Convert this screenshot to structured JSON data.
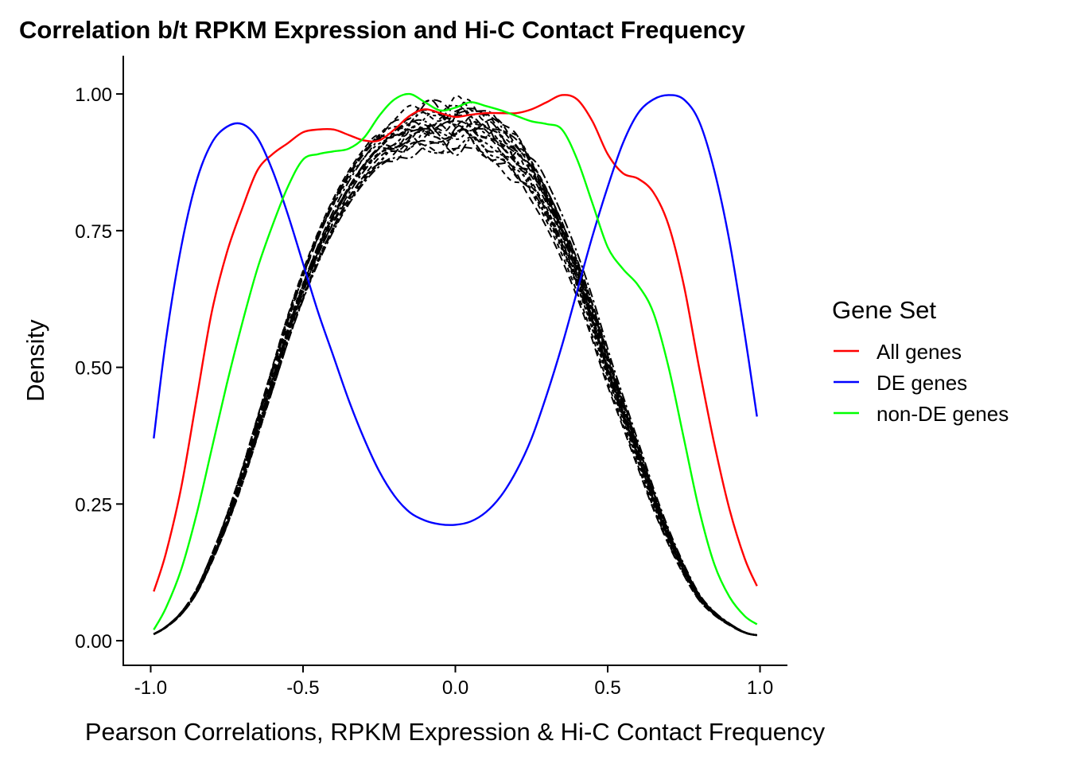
{
  "chart_data": {
    "type": "line",
    "title": "Correlation b/t RPKM Expression and Hi-C Contact Frequency",
    "xlabel": "Pearson Correlations, RPKM Expression & Hi-C Contact Frequency",
    "ylabel": "Density",
    "xlim": [
      -1.09,
      1.09
    ],
    "ylim": [
      -0.045,
      1.07
    ],
    "x_ticks": [
      -1.0,
      -0.5,
      0.0,
      0.5,
      1.0
    ],
    "x_tick_labels": [
      "-1.0",
      "-0.5",
      "0.0",
      "0.5",
      "1.0"
    ],
    "y_ticks": [
      0.0,
      0.25,
      0.5,
      0.75,
      1.0
    ],
    "y_tick_labels": [
      "0.00",
      "0.25",
      "0.50",
      "0.75",
      "1.00"
    ],
    "grid": false,
    "legend": {
      "title": "Gene Set",
      "position": "right",
      "entries": [
        {
          "label": "All genes",
          "color": "#ff0000"
        },
        {
          "label": "DE genes",
          "color": "#0000ff"
        },
        {
          "label": "non-DE genes",
          "color": "#00ff00"
        }
      ]
    },
    "series": [
      {
        "name": "All genes",
        "color": "#ff0000",
        "x": [
          -0.99,
          -0.95,
          -0.9,
          -0.85,
          -0.8,
          -0.75,
          -0.7,
          -0.65,
          -0.6,
          -0.55,
          -0.5,
          -0.45,
          -0.4,
          -0.35,
          -0.3,
          -0.25,
          -0.2,
          -0.15,
          -0.1,
          -0.05,
          0.0,
          0.05,
          0.1,
          0.15,
          0.2,
          0.25,
          0.3,
          0.35,
          0.4,
          0.45,
          0.5,
          0.55,
          0.6,
          0.65,
          0.7,
          0.75,
          0.8,
          0.85,
          0.9,
          0.95,
          0.99
        ],
        "y": [
          0.09,
          0.16,
          0.28,
          0.44,
          0.6,
          0.71,
          0.79,
          0.86,
          0.89,
          0.91,
          0.93,
          0.935,
          0.935,
          0.925,
          0.915,
          0.915,
          0.935,
          0.96,
          0.972,
          0.965,
          0.958,
          0.962,
          0.965,
          0.965,
          0.965,
          0.972,
          0.985,
          0.998,
          0.99,
          0.95,
          0.89,
          0.855,
          0.845,
          0.82,
          0.76,
          0.65,
          0.5,
          0.36,
          0.24,
          0.15,
          0.1
        ]
      },
      {
        "name": "DE genes",
        "color": "#0000ff",
        "x": [
          -0.99,
          -0.95,
          -0.9,
          -0.85,
          -0.8,
          -0.75,
          -0.7,
          -0.65,
          -0.6,
          -0.55,
          -0.5,
          -0.45,
          -0.4,
          -0.35,
          -0.3,
          -0.25,
          -0.2,
          -0.15,
          -0.1,
          -0.05,
          0.0,
          0.05,
          0.1,
          0.15,
          0.2,
          0.25,
          0.3,
          0.35,
          0.4,
          0.45,
          0.5,
          0.55,
          0.6,
          0.65,
          0.7,
          0.75,
          0.8,
          0.85,
          0.9,
          0.95,
          0.99
        ],
        "y": [
          0.37,
          0.55,
          0.72,
          0.84,
          0.91,
          0.94,
          0.945,
          0.92,
          0.86,
          0.78,
          0.69,
          0.6,
          0.52,
          0.44,
          0.37,
          0.31,
          0.265,
          0.235,
          0.22,
          0.213,
          0.212,
          0.218,
          0.235,
          0.265,
          0.31,
          0.37,
          0.45,
          0.54,
          0.64,
          0.74,
          0.83,
          0.91,
          0.965,
          0.99,
          0.998,
          0.99,
          0.95,
          0.86,
          0.73,
          0.56,
          0.41
        ]
      },
      {
        "name": "non-DE genes",
        "color": "#00ff00",
        "x": [
          -0.99,
          -0.95,
          -0.9,
          -0.85,
          -0.8,
          -0.75,
          -0.7,
          -0.65,
          -0.6,
          -0.55,
          -0.5,
          -0.45,
          -0.4,
          -0.35,
          -0.3,
          -0.25,
          -0.2,
          -0.15,
          -0.1,
          -0.05,
          0.0,
          0.05,
          0.1,
          0.15,
          0.2,
          0.25,
          0.3,
          0.35,
          0.4,
          0.45,
          0.5,
          0.55,
          0.6,
          0.65,
          0.7,
          0.75,
          0.8,
          0.85,
          0.9,
          0.95,
          0.99
        ],
        "y": [
          0.02,
          0.06,
          0.13,
          0.23,
          0.35,
          0.47,
          0.58,
          0.68,
          0.76,
          0.83,
          0.88,
          0.89,
          0.895,
          0.9,
          0.92,
          0.96,
          0.99,
          1.0,
          0.985,
          0.97,
          0.975,
          0.985,
          0.978,
          0.97,
          0.96,
          0.95,
          0.945,
          0.935,
          0.88,
          0.8,
          0.72,
          0.68,
          0.65,
          0.6,
          0.5,
          0.37,
          0.24,
          0.14,
          0.08,
          0.045,
          0.03
        ]
      }
    ],
    "null_series": {
      "color": "#000000",
      "style": "dashed",
      "count": 20,
      "x": [
        -0.99,
        -0.95,
        -0.9,
        -0.85,
        -0.8,
        -0.75,
        -0.7,
        -0.65,
        -0.6,
        -0.55,
        -0.5,
        -0.45,
        -0.4,
        -0.35,
        -0.3,
        -0.25,
        -0.2,
        -0.15,
        -0.1,
        -0.05,
        0.0,
        0.05,
        0.1,
        0.15,
        0.2,
        0.25,
        0.3,
        0.35,
        0.4,
        0.45,
        0.5,
        0.55,
        0.6,
        0.65,
        0.7,
        0.75,
        0.8,
        0.85,
        0.9,
        0.95,
        0.99
      ],
      "y": [
        0.012,
        0.025,
        0.05,
        0.09,
        0.15,
        0.22,
        0.3,
        0.39,
        0.48,
        0.57,
        0.65,
        0.72,
        0.78,
        0.83,
        0.87,
        0.9,
        0.92,
        0.935,
        0.94,
        0.945,
        0.945,
        0.94,
        0.93,
        0.91,
        0.885,
        0.85,
        0.8,
        0.74,
        0.67,
        0.59,
        0.5,
        0.42,
        0.34,
        0.26,
        0.19,
        0.13,
        0.08,
        0.05,
        0.03,
        0.015,
        0.01
      ]
    }
  }
}
